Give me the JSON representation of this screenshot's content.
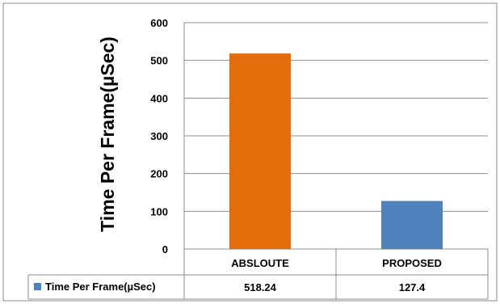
{
  "chart_data": {
    "type": "bar",
    "title": "",
    "xlabel": "",
    "ylabel": "Time Per Frame(µSec)",
    "categories": [
      "ABSLOUTE",
      "PROPOSED"
    ],
    "series": [
      {
        "name": "Time Per Frame(µSec)",
        "values": [
          518.24,
          127.4
        ],
        "value_labels": [
          "518.24",
          "127.4"
        ],
        "colors": [
          "#E46C0A",
          "#4F81BD"
        ]
      }
    ],
    "ylim": [
      0,
      600
    ],
    "yticks": [
      0,
      100,
      200,
      300,
      400,
      500,
      600
    ],
    "ytick_labels": [
      "0",
      "100",
      "200",
      "300",
      "400",
      "500",
      "600"
    ],
    "grid": true,
    "legend": "data-table-bottom",
    "legend_color": "#4F81BD"
  }
}
